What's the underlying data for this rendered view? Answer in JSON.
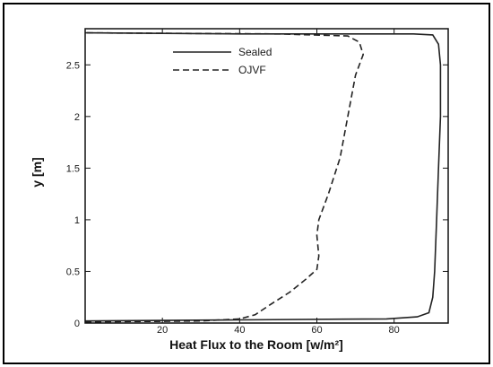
{
  "chart_data": {
    "type": "line",
    "title": "",
    "xlabel": "Heat Flux to the Room [w/m²]",
    "ylabel": "y [m]",
    "xlim": [
      0,
      94
    ],
    "ylim": [
      0,
      2.85
    ],
    "x_ticks": [
      "20",
      "40",
      "60",
      "80"
    ],
    "y_ticks": [
      "0",
      "0.5",
      "1",
      "1.5",
      "2",
      "2.5"
    ],
    "legend_position": "top-center",
    "series": [
      {
        "name": "Sealed",
        "style": "solid",
        "color": "#222222",
        "points": [
          [
            0,
            0.02
          ],
          [
            40,
            0.03
          ],
          [
            78,
            0.04
          ],
          [
            86,
            0.06
          ],
          [
            89,
            0.1
          ],
          [
            90,
            0.25
          ],
          [
            90.5,
            0.5
          ],
          [
            91,
            1.0
          ],
          [
            91.5,
            1.5
          ],
          [
            92,
            2.0
          ],
          [
            92,
            2.5
          ],
          [
            91.5,
            2.7
          ],
          [
            90,
            2.79
          ],
          [
            85,
            2.8
          ],
          [
            40,
            2.8
          ],
          [
            0,
            2.81
          ]
        ]
      },
      {
        "name": "OJVF",
        "style": "dashed",
        "color": "#222222",
        "points": [
          [
            0,
            0.01
          ],
          [
            30,
            0.02
          ],
          [
            40,
            0.04
          ],
          [
            44,
            0.08
          ],
          [
            48,
            0.18
          ],
          [
            53,
            0.3
          ],
          [
            57,
            0.42
          ],
          [
            60,
            0.52
          ],
          [
            60.5,
            0.65
          ],
          [
            60,
            0.85
          ],
          [
            60.5,
            1.0
          ],
          [
            63,
            1.25
          ],
          [
            66,
            1.6
          ],
          [
            68,
            2.0
          ],
          [
            70,
            2.4
          ],
          [
            72,
            2.6
          ],
          [
            71,
            2.72
          ],
          [
            68,
            2.78
          ],
          [
            50,
            2.8
          ],
          [
            0,
            2.81
          ]
        ]
      }
    ]
  }
}
